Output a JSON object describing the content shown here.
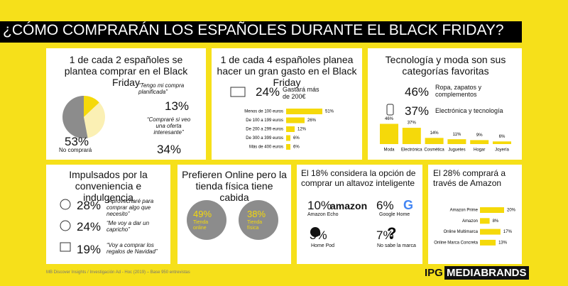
{
  "title": "¿CÓMO COMPRARÁN LOS ESPAÑOLES DURANTE EL BLACK FRIDAY?",
  "p1": {
    "heading": "1 de cada 2 españoles se plantea comprar en el Black Friday",
    "chart": {
      "type": "pie",
      "values": [
        53,
        13,
        34
      ],
      "value_labels": [
        "53%",
        "13%",
        "34%"
      ],
      "labels": [
        "No comprará",
        "“Tengo mi compra planificada”",
        "“Compraré si veo una oferta interesante”"
      ],
      "colors": [
        "#8c8c8c",
        "#f5d90a",
        "#fbf0b4"
      ]
    }
  },
  "p2": {
    "heading": "1 de cada 4 españoles planea hacer un gran gasto en el Black Friday",
    "big": "24%",
    "note": "Gastará más de 200€",
    "chart": {
      "type": "bar",
      "horizontal": true,
      "categories": [
        "Menos de 100 euros",
        "De 100 a 199 euros",
        "De 200 a 299 euros",
        "De 300 a 399 euros",
        "Más de 400 euros"
      ],
      "values": [
        51,
        26,
        12,
        6,
        6
      ],
      "value_labels": [
        "51%",
        "26%",
        "12%",
        "6%",
        "6%"
      ],
      "color": "#f5d90a"
    }
  },
  "p3": {
    "heading": "Tecnología y moda son sus categorías favoritas",
    "items": [
      {
        "value": "46%",
        "text": "Ropa, zapatos y complementos"
      },
      {
        "value": "37%",
        "text": "Electrónica y tecnología"
      }
    ],
    "chart": {
      "type": "bar",
      "horizontal": false,
      "categories": [
        "Moda",
        "Electrónica",
        "Cosmética",
        "Juguetes",
        "Hogar",
        "Joyería"
      ],
      "values": [
        46,
        37,
        14,
        11,
        9,
        6
      ],
      "value_labels": [
        "46%",
        "37%",
        "14%",
        "11%",
        "9%",
        "6%"
      ],
      "color": "#f5d90a"
    }
  },
  "p4": {
    "heading": "Impulsados por la conveniencia e indulgencia",
    "items": [
      {
        "value": "28%",
        "text": "“Aprovecharé para comprar algo que necesito”"
      },
      {
        "value": "24%",
        "text": "“Me voy a dar un capricho”"
      },
      {
        "value": "19%",
        "text": "“Voy a comprar los regalos de Navidad”"
      }
    ]
  },
  "p5": {
    "heading": "Prefieren Online pero la tienda física tiene cabida",
    "items": [
      {
        "value": "49%",
        "text": "Tienda online"
      },
      {
        "value": "38%",
        "text": "Tienda física"
      }
    ]
  },
  "p6": {
    "heading": "El 18% considera la opción de comprar un altavoz inteligente",
    "logo": "amazon",
    "items": [
      {
        "value": "10%",
        "text": "Amazon Echo"
      },
      {
        "value": "6%",
        "text": "Google Home"
      },
      {
        "value": "3%",
        "text": "Home Pod"
      },
      {
        "value": "7%",
        "text": "No sabe la marca"
      }
    ]
  },
  "p7": {
    "heading": "El 28% comprará a través de Amazon",
    "chart": {
      "type": "bar",
      "horizontal": true,
      "categories": [
        "Amazon Prime",
        "Amazon",
        "Online Multimarca",
        "Online Marca Concreta"
      ],
      "values": [
        20,
        8,
        17,
        13
      ],
      "value_labels": [
        "20%",
        "8%",
        "17%",
        "13%"
      ],
      "color": "#f5d90a"
    }
  },
  "footer": "MB Discover Insights / Investigación Ad - Hoc (2019) – Base 950 entrevistas",
  "logo": {
    "a": "IPG",
    "b": "MEDIABRANDS"
  }
}
